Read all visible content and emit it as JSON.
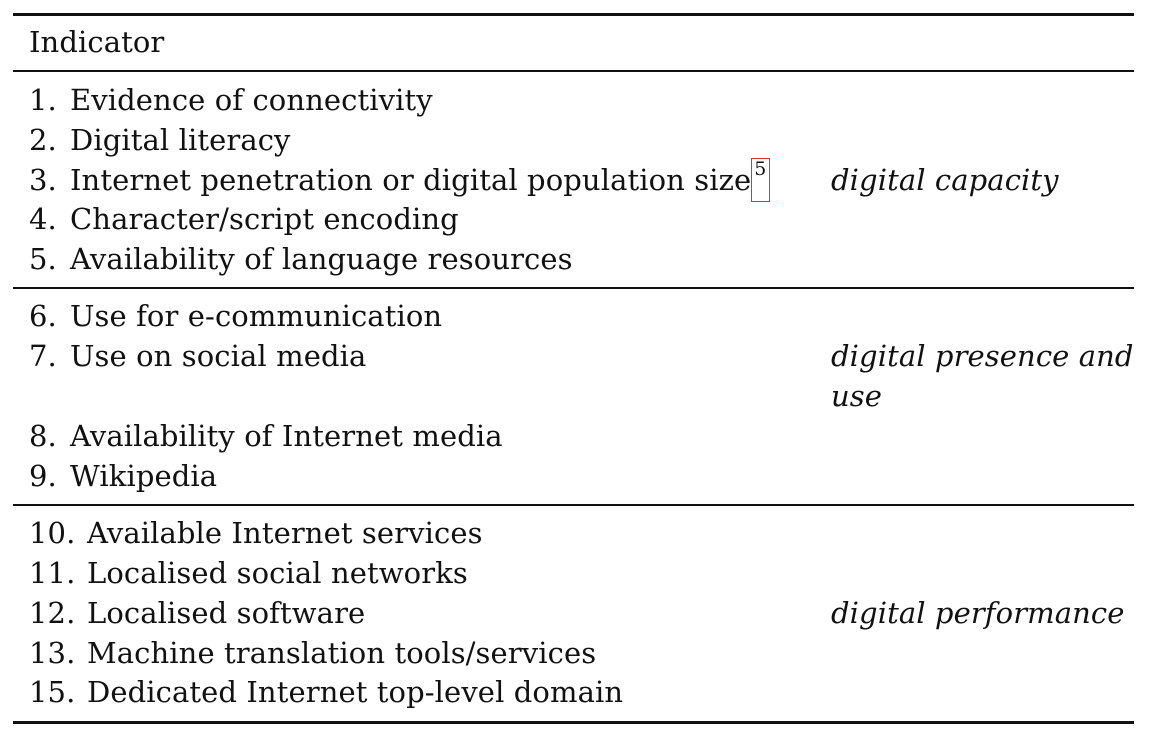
{
  "header": {
    "indicator": "Indicator"
  },
  "groups": [
    {
      "category": "digital capacity",
      "items": [
        {
          "num": "1.",
          "text": "Evidence of connectivity"
        },
        {
          "num": "2.",
          "text": "Digital literacy"
        },
        {
          "num": "3.",
          "text": "Internet penetration or digital population size",
          "footnote": "5"
        },
        {
          "num": "4.",
          "text": "Character/script encoding"
        },
        {
          "num": "5.",
          "text": "Availability of language resources"
        }
      ]
    },
    {
      "category_line1": "digital presence and",
      "category_line2": "use",
      "items": [
        {
          "num": "6.",
          "text": "Use for e-communication"
        },
        {
          "num": "7.",
          "text": "Use on social media"
        },
        {
          "num": "8.",
          "text": "Availability of Internet media"
        },
        {
          "num": "9.",
          "text": "Wikipedia"
        }
      ]
    },
    {
      "category": "digital performance",
      "items": [
        {
          "num": "10.",
          "text": "Available Internet services"
        },
        {
          "num": "11.",
          "text": "Localised social networks"
        },
        {
          "num": "12.",
          "text": "Localised software"
        },
        {
          "num": "13.",
          "text": "Machine translation tools/services"
        },
        {
          "num": "15.",
          "text": "Dedicated Internet top-level domain"
        }
      ]
    }
  ]
}
